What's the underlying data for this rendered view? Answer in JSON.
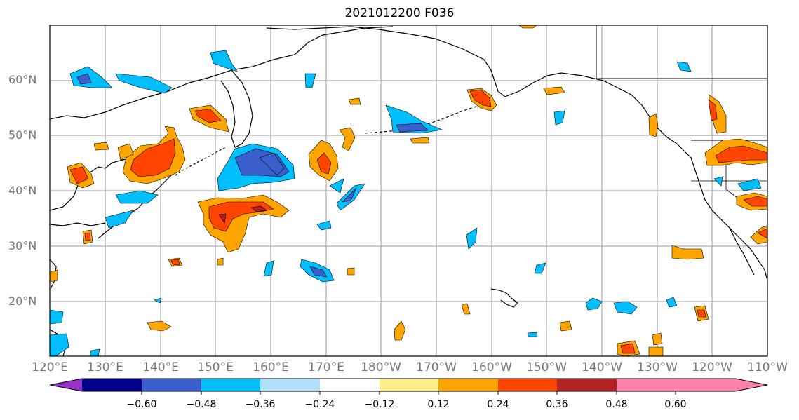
{
  "title": "2021012200 F036",
  "lat_labels": [
    "60°N",
    "50°N",
    "40°N",
    "30°N",
    "20°N"
  ],
  "lon_labels": [
    "120°E",
    "130°E",
    "140°E",
    "150°E",
    "160°E",
    "170°E",
    "180°W",
    "170°W",
    "160°W",
    "150°W",
    "140°W",
    "130°W",
    "120°W",
    "110°W"
  ],
  "colorbar": {
    "ticks": [
      "−0.60",
      "−0.48",
      "−0.36",
      "−0.24",
      "−0.12",
      "0.12",
      "0.24",
      "0.36",
      "0.48",
      "0.60"
    ],
    "colors": {
      "below_min": "#9932CC",
      "n060_n048": "#00008B",
      "n048_n036": "#3A5FCD",
      "n036_n024": "#00BFFF",
      "n024_n012": "#B0E2FF",
      "n012_p012": "#FFFFFF",
      "p012_p024": "#FFEC8B",
      "p024_p036": "#FFA500",
      "p036_p048": "#FF4500",
      "p048_p060": "#B22222",
      "above_max": "#FF82AB"
    }
  }
}
